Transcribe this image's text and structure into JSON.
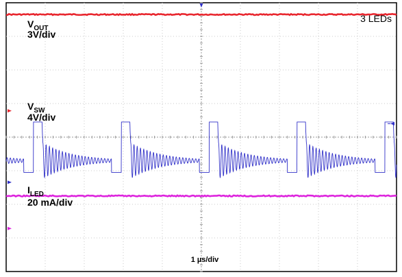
{
  "chart_data": {
    "type": "line",
    "title": "",
    "annotation": "3 LEDs",
    "timebase": "1 µs/div",
    "grid": true,
    "divisions": {
      "x": 10,
      "y": 8
    },
    "channels": [
      {
        "key": "vout",
        "name_main": "V",
        "name_sub": "OUT",
        "scale": "3V/div",
        "color": "#e8262e",
        "level_div": 7.65,
        "kind": "flat"
      },
      {
        "key": "vsw",
        "name_main": "V",
        "name_sub": "SW",
        "scale": "4V/div",
        "color": "#3030c8",
        "kind": "switching",
        "period_div": 2.25,
        "phase_div": 0.7,
        "high_level_div": 4.45,
        "high_width_div": 0.22,
        "low_level_div": 2.95,
        "ring_center_div": 3.3,
        "ring_amplitude_div": 0.55,
        "ring_frequency_per_div": 12,
        "ring_decay_per_div": 1.35
      },
      {
        "key": "iled",
        "name_main": "I",
        "name_sub": "LED",
        "scale": "20 mA/div",
        "color": "#dd22dd",
        "level_div": 2.25,
        "kind": "flat"
      }
    ]
  },
  "colors": {
    "grid": "#c8c8c8",
    "center_axis": "#9a9a9a",
    "border": "#000000",
    "marker_red": "#e8262e",
    "marker_blue": "#3030c8",
    "marker_magenta": "#dd22dd"
  }
}
